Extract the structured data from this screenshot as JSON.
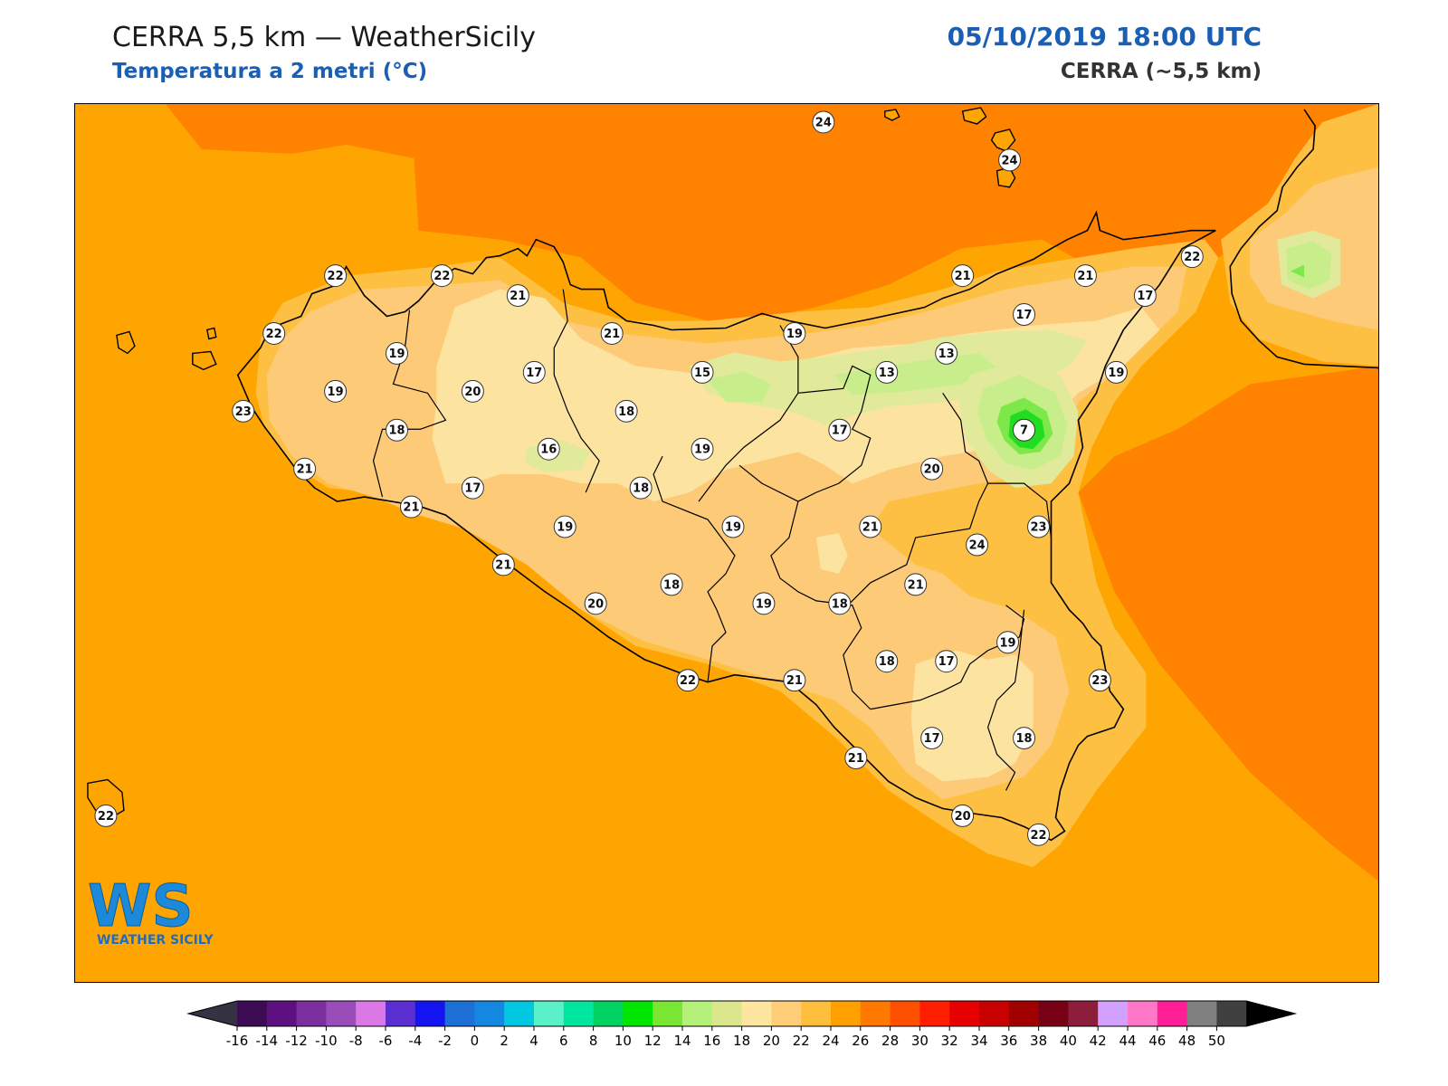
{
  "header": {
    "title": "CERRA 5,5 km — WeatherSicily",
    "subtitle": "Temperatura a 2 metri (°C)",
    "datetime": "05/10/2019 18:00 UTC",
    "model": "CERRA (~5,5 km)"
  },
  "logo": {
    "mark": "WS",
    "name": "WEATHER SICILY"
  },
  "field_colors": {
    "t12_14": "#c8ee8c",
    "t14_16": "#e0ea9a",
    "t16_18": "#fde3a0",
    "t18_20": "#fdca78",
    "t20_22": "#fec043",
    "t22_24": "#ffa502",
    "t24_26": "#ff8200",
    "t8_10": "#22dc22",
    "t10_12": "#7ce84a"
  },
  "stations": [
    {
      "id": "s01",
      "value": "24"
    },
    {
      "id": "s02",
      "value": "24"
    },
    {
      "id": "s03",
      "value": "22"
    },
    {
      "id": "s04",
      "value": "22"
    },
    {
      "id": "s05",
      "value": "21"
    },
    {
      "id": "s06",
      "value": "22"
    },
    {
      "id": "s07",
      "value": "19"
    },
    {
      "id": "s08",
      "value": "21"
    },
    {
      "id": "s09",
      "value": "19"
    },
    {
      "id": "s10",
      "value": "20"
    },
    {
      "id": "s11",
      "value": "17"
    },
    {
      "id": "s12",
      "value": "21"
    },
    {
      "id": "s13",
      "value": "21"
    },
    {
      "id": "s14",
      "value": "22"
    },
    {
      "id": "s15",
      "value": "17"
    },
    {
      "id": "s16",
      "value": "17"
    },
    {
      "id": "s17",
      "value": "13"
    },
    {
      "id": "s18",
      "value": "13"
    },
    {
      "id": "s19",
      "value": "15"
    },
    {
      "id": "s20",
      "value": "19"
    },
    {
      "id": "s21",
      "value": "23"
    },
    {
      "id": "s22",
      "value": "18"
    },
    {
      "id": "s23",
      "value": "18"
    },
    {
      "id": "s24",
      "value": "17"
    },
    {
      "id": "s25",
      "value": "7"
    },
    {
      "id": "s26",
      "value": "16"
    },
    {
      "id": "s27",
      "value": "19"
    },
    {
      "id": "s28",
      "value": "21"
    },
    {
      "id": "s29",
      "value": "17"
    },
    {
      "id": "s30",
      "value": "18"
    },
    {
      "id": "s31",
      "value": "20"
    },
    {
      "id": "s32",
      "value": "21"
    },
    {
      "id": "s33",
      "value": "19"
    },
    {
      "id": "s34",
      "value": "19"
    },
    {
      "id": "s35",
      "value": "19"
    },
    {
      "id": "s36",
      "value": "21"
    },
    {
      "id": "s37",
      "value": "23"
    },
    {
      "id": "s38",
      "value": "24"
    },
    {
      "id": "s39",
      "value": "21"
    },
    {
      "id": "s40",
      "value": "18"
    },
    {
      "id": "s41",
      "value": "20"
    },
    {
      "id": "s42",
      "value": "19"
    },
    {
      "id": "s43",
      "value": "18"
    },
    {
      "id": "s44",
      "value": "21"
    },
    {
      "id": "s45",
      "value": "18"
    },
    {
      "id": "s46",
      "value": "17"
    },
    {
      "id": "s47",
      "value": "19"
    },
    {
      "id": "s48",
      "value": "22"
    },
    {
      "id": "s49",
      "value": "21"
    },
    {
      "id": "s50",
      "value": "23"
    },
    {
      "id": "s51",
      "value": "17"
    },
    {
      "id": "s52",
      "value": "18"
    },
    {
      "id": "s53",
      "value": "21"
    },
    {
      "id": "s54",
      "value": "20"
    },
    {
      "id": "s55",
      "value": "22"
    },
    {
      "id": "s56",
      "value": "22"
    }
  ],
  "colorbar": {
    "colors": [
      "#3d0a54",
      "#5e1080",
      "#7b2f9e",
      "#9a4cb8",
      "#dc78e6",
      "#5a2ed0",
      "#1414f0",
      "#1e6fd6",
      "#1488e0",
      "#00c8e0",
      "#5af0c8",
      "#00e6a0",
      "#00d264",
      "#00e600",
      "#78e632",
      "#b4f07a",
      "#dce68c",
      "#ffe6a0",
      "#ffcd78",
      "#ffbe3c",
      "#ffa000",
      "#ff7800",
      "#ff5000",
      "#ff1e00",
      "#e60000",
      "#c80000",
      "#a00000",
      "#780014",
      "#8c1e3c",
      "#d2a0ff",
      "#ff78c8",
      "#ff1e96",
      "#808080",
      "#404040"
    ],
    "under_color": "#333344",
    "over_color": "#000000",
    "labels": [
      "-16",
      "-14",
      "-12",
      "-10",
      "-8",
      "-6",
      "-4",
      "-2",
      "0",
      "2",
      "4",
      "6",
      "8",
      "10",
      "12",
      "14",
      "16",
      "18",
      "20",
      "22",
      "24",
      "26",
      "28",
      "30",
      "32",
      "34",
      "36",
      "38",
      "40",
      "42",
      "44",
      "46",
      "48",
      "50"
    ]
  }
}
